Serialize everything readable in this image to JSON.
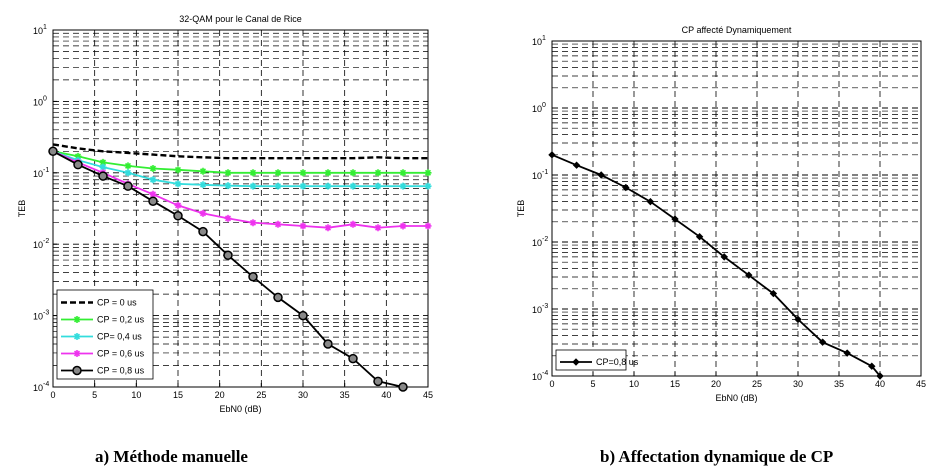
{
  "captions": {
    "a": "a) Méthode manuelle",
    "b": "b) Affectation dynamique de CP"
  },
  "chart_data": [
    {
      "type": "line",
      "title": "32-QAM pour le Canal de Rice",
      "xlabel": "EbN0 (dB)",
      "ylabel": "TEB",
      "yscale": "log",
      "xlim": [
        0,
        45
      ],
      "ylim": [
        0.0001,
        10
      ],
      "xticks": [
        0,
        5,
        10,
        15,
        20,
        25,
        30,
        35,
        40,
        45
      ],
      "yticks": [
        {
          "base": "10",
          "exp": "1"
        },
        {
          "base": "10",
          "exp": "0"
        },
        {
          "base": "10",
          "exp": "-1"
        },
        {
          "base": "10",
          "exp": "-2"
        },
        {
          "base": "10",
          "exp": "-3"
        },
        {
          "base": "10",
          "exp": "-4"
        }
      ],
      "grid": true,
      "legend_position": "bottom-left",
      "series": [
        {
          "name": "CP = 0 us",
          "color": "#000000",
          "marker": "none",
          "dash": "dashed",
          "x": [
            0,
            3,
            6,
            9,
            12,
            15,
            18,
            21,
            24,
            27,
            30,
            33,
            36,
            39,
            42,
            45
          ],
          "y": [
            0.25,
            0.22,
            0.2,
            0.19,
            0.18,
            0.17,
            0.165,
            0.16,
            0.16,
            0.16,
            0.16,
            0.16,
            0.16,
            0.165,
            0.16,
            0.16
          ]
        },
        {
          "name": "CP = 0,2 us",
          "color": "#33ee33",
          "marker": "star",
          "dash": "solid",
          "x": [
            0,
            3,
            6,
            9,
            12,
            15,
            18,
            21,
            24,
            27,
            30,
            33,
            36,
            39,
            42,
            45
          ],
          "y": [
            0.2,
            0.17,
            0.14,
            0.125,
            0.115,
            0.11,
            0.105,
            0.1,
            0.1,
            0.1,
            0.1,
            0.1,
            0.1,
            0.1,
            0.1,
            0.1
          ]
        },
        {
          "name": "CP=  0,4 us",
          "color": "#33dddd",
          "marker": "star",
          "dash": "solid",
          "x": [
            0,
            3,
            6,
            9,
            12,
            15,
            18,
            21,
            24,
            27,
            30,
            33,
            36,
            39,
            42,
            45
          ],
          "y": [
            0.2,
            0.15,
            0.12,
            0.1,
            0.08,
            0.07,
            0.068,
            0.066,
            0.065,
            0.065,
            0.065,
            0.065,
            0.065,
            0.065,
            0.065,
            0.065
          ]
        },
        {
          "name": "CP = 0,6 us",
          "color": "#ee33ee",
          "marker": "star",
          "dash": "solid",
          "x": [
            0,
            3,
            6,
            9,
            12,
            15,
            18,
            21,
            24,
            27,
            30,
            33,
            36,
            39,
            42,
            45
          ],
          "y": [
            0.2,
            0.14,
            0.1,
            0.07,
            0.05,
            0.035,
            0.027,
            0.023,
            0.02,
            0.019,
            0.018,
            0.017,
            0.019,
            0.017,
            0.018,
            0.018
          ]
        },
        {
          "name": "CP = 0,8 us",
          "color": "#000000",
          "marker": "circle",
          "dash": "solid",
          "x": [
            0,
            3,
            6,
            9,
            12,
            15,
            18,
            21,
            24,
            27,
            30,
            33,
            36,
            39,
            42
          ],
          "y": [
            0.2,
            0.13,
            0.09,
            0.065,
            0.04,
            0.025,
            0.015,
            0.007,
            0.0035,
            0.0018,
            0.001,
            0.0004,
            0.00025,
            0.00012,
            0.0001
          ]
        }
      ]
    },
    {
      "type": "line",
      "title": "CP affecté Dynamiquement",
      "xlabel": "EbN0 (dB)",
      "ylabel": "TEB",
      "yscale": "log",
      "xlim": [
        0,
        45
      ],
      "ylim": [
        0.0001,
        10
      ],
      "xticks": [
        0,
        5,
        10,
        15,
        20,
        25,
        30,
        35,
        40,
        45
      ],
      "yticks": [
        {
          "base": "10",
          "exp": "1"
        },
        {
          "base": "10",
          "exp": "0"
        },
        {
          "base": "10",
          "exp": "-1"
        },
        {
          "base": "10",
          "exp": "-2"
        },
        {
          "base": "10",
          "exp": "-3"
        },
        {
          "base": "10",
          "exp": "-4"
        }
      ],
      "grid": true,
      "legend_position": "bottom-left",
      "series": [
        {
          "name": "CP=0,8 us",
          "color": "#000000",
          "marker": "diamond",
          "dash": "solid",
          "x": [
            0,
            3,
            6,
            9,
            12,
            15,
            18,
            21,
            24,
            27,
            30,
            33,
            36,
            39,
            40
          ],
          "y": [
            0.2,
            0.14,
            0.1,
            0.065,
            0.04,
            0.022,
            0.012,
            0.006,
            0.0032,
            0.0017,
            0.0007,
            0.00032,
            0.00022,
            0.00014,
            0.0001
          ]
        }
      ]
    }
  ]
}
